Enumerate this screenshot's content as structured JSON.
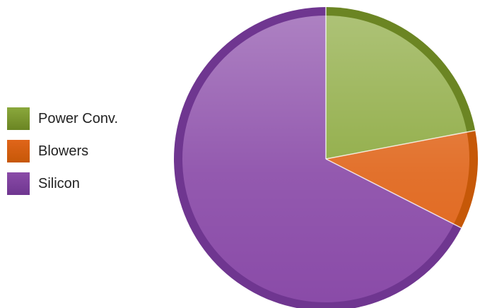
{
  "chart_data": {
    "type": "pie",
    "legend_position": "left",
    "series": [
      {
        "name": "Power Conv.",
        "value": 22,
        "color": "#8aa83c",
        "edge_color": "#6b8523"
      },
      {
        "name": "Blowers",
        "value": 10.5,
        "color": "#e0651a",
        "edge_color": "#c65808"
      },
      {
        "name": "Silicon",
        "value": 67.5,
        "color": "#8a4ba8",
        "edge_color": "#6f3690"
      }
    ]
  }
}
